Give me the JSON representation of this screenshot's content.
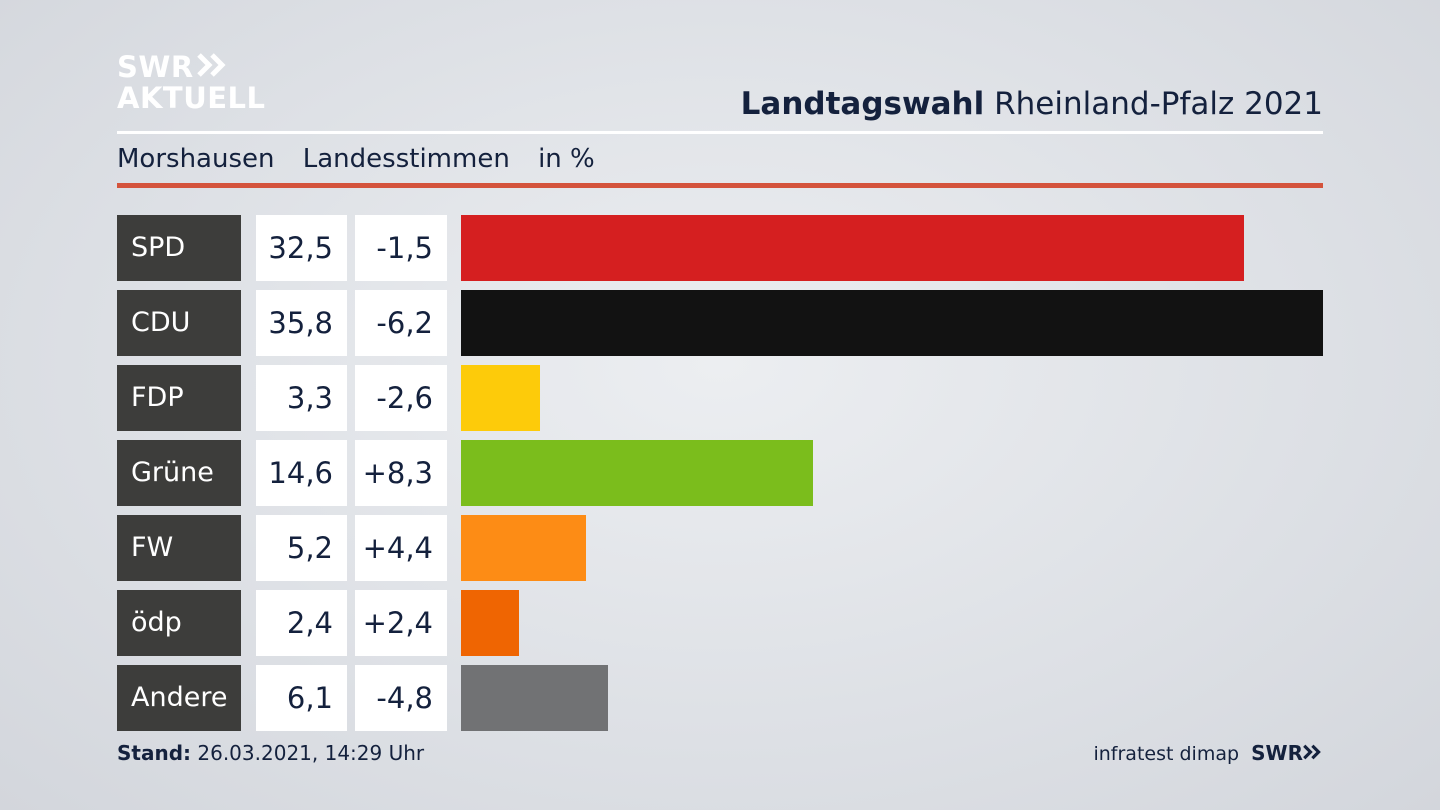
{
  "chart_data": {
    "type": "bar",
    "logo": {
      "line1": "SWR",
      "line2": "AKTUELL"
    },
    "title": "Landtagswahl",
    "title_rest": "Rheinland-Pfalz 2021",
    "subtitle": [
      "Morshausen",
      "Landesstimmen",
      "in %"
    ],
    "categories": [
      "SPD",
      "CDU",
      "FDP",
      "Grüne",
      "FW",
      "ödp",
      "Andere"
    ],
    "values": [
      32.5,
      35.8,
      3.3,
      14.6,
      5.2,
      2.4,
      6.1
    ],
    "value_labels": [
      "32,5",
      "35,8",
      "3,3",
      "14,6",
      "5,2",
      "2,4",
      "6,1"
    ],
    "changes": [
      -1.5,
      -6.2,
      -2.6,
      8.3,
      4.4,
      2.4,
      -4.8
    ],
    "change_labels": [
      "-1,5",
      "-6,2",
      "-2,6",
      "+8,3",
      "+4,4",
      "+2,4",
      "-4,8"
    ],
    "colors": [
      "#d51f20",
      "#121212",
      "#fdcb0a",
      "#7bbd1c",
      "#fd8c15",
      "#ef6502",
      "#717274"
    ],
    "footer": {
      "label": "Stand:",
      "text": "26.03.2021, 14:29 Uhr",
      "source": "infratest dimap",
      "brand": "SWR"
    }
  }
}
